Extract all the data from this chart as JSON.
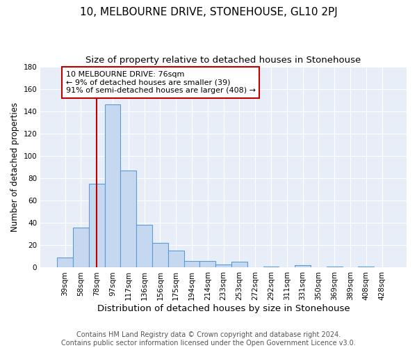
{
  "title": "10, MELBOURNE DRIVE, STONEHOUSE, GL10 2PJ",
  "subtitle": "Size of property relative to detached houses in Stonehouse",
  "xlabel": "Distribution of detached houses by size in Stonehouse",
  "ylabel": "Number of detached properties",
  "categories": [
    "39sqm",
    "58sqm",
    "78sqm",
    "97sqm",
    "117sqm",
    "136sqm",
    "156sqm",
    "175sqm",
    "194sqm",
    "214sqm",
    "233sqm",
    "253sqm",
    "272sqm",
    "292sqm",
    "311sqm",
    "331sqm",
    "350sqm",
    "369sqm",
    "389sqm",
    "408sqm",
    "428sqm"
  ],
  "values": [
    9,
    36,
    75,
    146,
    87,
    38,
    22,
    15,
    6,
    6,
    3,
    5,
    0,
    1,
    0,
    2,
    0,
    1,
    0,
    1,
    0
  ],
  "bar_color": "#c5d8f0",
  "bar_edge_color": "#5b9bd5",
  "vline_x": 2,
  "vline_color": "#c00000",
  "annotation_line1": "10 MELBOURNE DRIVE: 76sqm",
  "annotation_line2": "← 9% of detached houses are smaller (39)",
  "annotation_line3": "91% of semi-detached houses are larger (408) →",
  "annotation_box_color": "white",
  "annotation_box_edge_color": "#c00000",
  "ylim": [
    0,
    180
  ],
  "yticks": [
    0,
    20,
    40,
    60,
    80,
    100,
    120,
    140,
    160,
    180
  ],
  "footer_text": "Contains HM Land Registry data © Crown copyright and database right 2024.\nContains public sector information licensed under the Open Government Licence v3.0.",
  "fig_bg_color": "#ffffff",
  "plot_bg_color": "#e8eef8",
  "grid_color": "#ffffff",
  "title_fontsize": 11,
  "subtitle_fontsize": 9.5,
  "xlabel_fontsize": 9.5,
  "ylabel_fontsize": 8.5,
  "tick_fontsize": 7.5,
  "footer_fontsize": 7,
  "annotation_fontsize": 8
}
